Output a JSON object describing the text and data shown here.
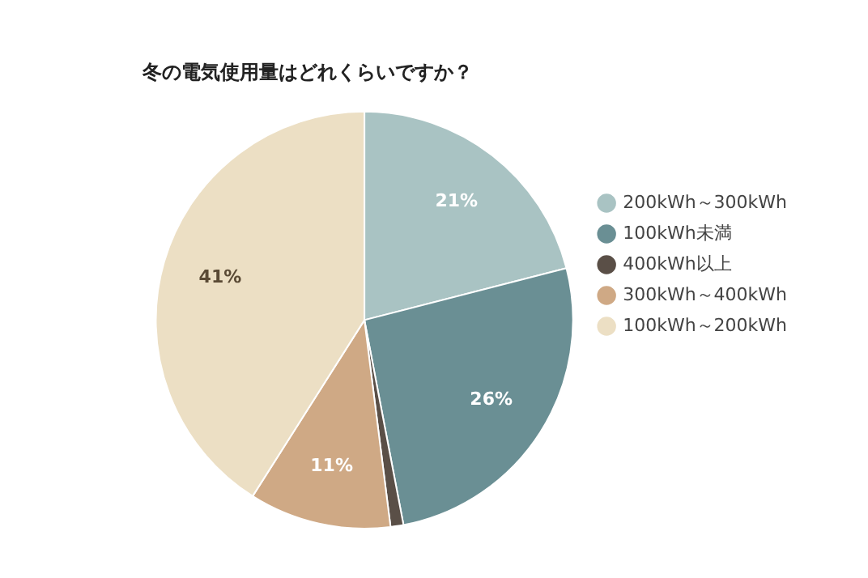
{
  "chart_data": {
    "type": "pie",
    "title": "冬の電気使用量はどれくらいですか？",
    "categories": [
      "200kWh～300kWh",
      "100kWh未満",
      "400kWh以上",
      "300kWh～400kWh",
      "100kWh～200kWh"
    ],
    "values": [
      21,
      26,
      1,
      11,
      41
    ],
    "value_labels": [
      "21%",
      "26%",
      null,
      "11%",
      "41%"
    ],
    "colors": [
      "#a9c3c3",
      "#6a8f94",
      "#5a4f47",
      "#cfa985",
      "#ecdfc4"
    ],
    "legend": "right"
  }
}
